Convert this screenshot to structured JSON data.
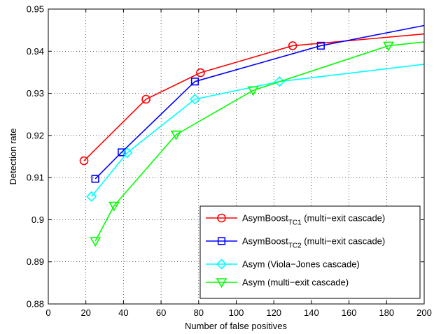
{
  "chart_data": {
    "type": "line",
    "xlabel": "Number of false positives",
    "ylabel": "Detection rate",
    "xlim": [
      0,
      200
    ],
    "ylim": [
      0.88,
      0.95
    ],
    "xticks": [
      "0",
      "20",
      "40",
      "60",
      "80",
      "100",
      "120",
      "140",
      "160",
      "180",
      "200"
    ],
    "yticks": [
      "0.88",
      "0.89",
      "0.9",
      "0.91",
      "0.92",
      "0.93",
      "0.94",
      "0.95"
    ],
    "grid": true,
    "legend_position": "lower-right",
    "series": [
      {
        "name": "AsymBoostTC1 (multi−exit cascade)",
        "legend": {
          "main": "AsymBoost",
          "sub": "TC1",
          "rest": " (multi−exit cascade)"
        },
        "color": "#ff0000",
        "marker": "circle",
        "line": [
          [
            19,
            0.914
          ],
          [
            52,
            0.9286
          ],
          [
            81,
            0.9349
          ],
          [
            130,
            0.9413
          ],
          [
            200,
            0.9441
          ]
        ],
        "markers": [
          [
            19,
            0.914
          ],
          [
            52,
            0.9286
          ],
          [
            81,
            0.9349
          ],
          [
            130,
            0.9413
          ]
        ]
      },
      {
        "name": "AsymBoostTC2 (multi−exit cascade)",
        "legend": {
          "main": "AsymBoost",
          "sub": "TC2",
          "rest": " (multi−exit cascade)"
        },
        "color": "#0000ff",
        "marker": "square",
        "line": [
          [
            25,
            0.9097
          ],
          [
            39,
            0.916
          ],
          [
            78,
            0.9328
          ],
          [
            145,
            0.9413
          ],
          [
            200,
            0.9461
          ]
        ],
        "markers": [
          [
            25,
            0.9097
          ],
          [
            39,
            0.916
          ],
          [
            78,
            0.9328
          ],
          [
            145,
            0.9413
          ]
        ]
      },
      {
        "name": "Asym (Viola−Jones cascade)",
        "legend": {
          "main": "Asym (Viola−Jones cascade)",
          "sub": "",
          "rest": ""
        },
        "color": "#00ffff",
        "marker": "diamond",
        "line": [
          [
            23,
            0.9055
          ],
          [
            42,
            0.9159
          ],
          [
            78,
            0.9286
          ],
          [
            123,
            0.9328
          ],
          [
            200,
            0.9369
          ]
        ],
        "markers": [
          [
            23,
            0.9055
          ],
          [
            42,
            0.9159
          ],
          [
            78,
            0.9286
          ],
          [
            123,
            0.9328
          ]
        ]
      },
      {
        "name": "Asym (multi−exit cascade)",
        "legend": {
          "main": "Asym (multi−exit cascade)",
          "sub": "",
          "rest": ""
        },
        "color": "#00ff00",
        "marker": "triangle-down",
        "line": [
          [
            25,
            0.8949
          ],
          [
            35,
            0.9033
          ],
          [
            68,
            0.9202
          ],
          [
            109,
            0.9307
          ],
          [
            181,
            0.9413
          ],
          [
            200,
            0.9422
          ]
        ],
        "markers": [
          [
            25,
            0.8949
          ],
          [
            35,
            0.9033
          ],
          [
            68,
            0.9202
          ],
          [
            109,
            0.9307
          ],
          [
            181,
            0.9413
          ]
        ]
      }
    ]
  }
}
